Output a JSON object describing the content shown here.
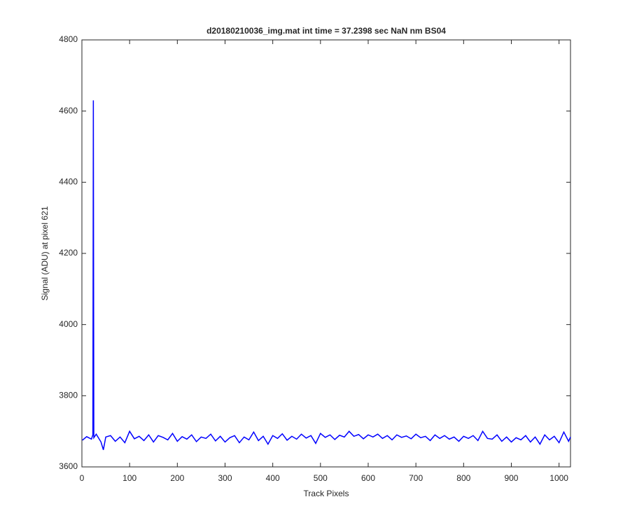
{
  "chart_data": {
    "type": "line",
    "title": "d20180210036_img.mat int time = 37.2398 sec  NaN nm BS04",
    "x_label": "Track Pixels",
    "y_label": "Signal (ADU) at pixel 621",
    "color": "#0000ff",
    "x": [
      1,
      10,
      20,
      23,
      24,
      25,
      30,
      40,
      45,
      50,
      60,
      70,
      80,
      90,
      100,
      110,
      120,
      130,
      140,
      150,
      160,
      170,
      180,
      190,
      200,
      210,
      220,
      230,
      240,
      250,
      260,
      270,
      280,
      290,
      300,
      310,
      320,
      330,
      340,
      350,
      360,
      370,
      380,
      390,
      400,
      410,
      420,
      430,
      440,
      450,
      460,
      470,
      480,
      490,
      500,
      510,
      520,
      530,
      540,
      550,
      560,
      570,
      580,
      590,
      600,
      610,
      620,
      630,
      640,
      650,
      660,
      670,
      680,
      690,
      700,
      710,
      720,
      730,
      740,
      750,
      760,
      770,
      780,
      790,
      800,
      810,
      820,
      830,
      840,
      850,
      860,
      870,
      880,
      890,
      900,
      910,
      920,
      930,
      940,
      950,
      960,
      970,
      980,
      990,
      1000,
      1010,
      1020,
      1024
    ],
    "values": [
      3675,
      3685,
      3678,
      3690,
      4630,
      3682,
      3692,
      3670,
      3648,
      3684,
      3688,
      3672,
      3684,
      3668,
      3700,
      3679,
      3686,
      3674,
      3690,
      3670,
      3688,
      3683,
      3676,
      3694,
      3672,
      3685,
      3678,
      3690,
      3671,
      3684,
      3680,
      3692,
      3673,
      3686,
      3670,
      3682,
      3688,
      3668,
      3684,
      3676,
      3698,
      3674,
      3686,
      3664,
      3688,
      3680,
      3693,
      3675,
      3686,
      3678,
      3692,
      3681,
      3688,
      3666,
      3694,
      3683,
      3690,
      3677,
      3689,
      3684,
      3700,
      3686,
      3691,
      3679,
      3690,
      3684,
      3692,
      3680,
      3688,
      3676,
      3690,
      3683,
      3687,
      3679,
      3692,
      3682,
      3686,
      3674,
      3690,
      3680,
      3688,
      3678,
      3684,
      3672,
      3686,
      3680,
      3688,
      3674,
      3700,
      3680,
      3678,
      3690,
      3672,
      3684,
      3670,
      3682,
      3676,
      3688,
      3670,
      3684,
      3664,
      3690,
      3676,
      3686,
      3668,
      3698,
      3672,
      3684
    ],
    "xlim": [
      0,
      1024
    ],
    "ylim": [
      3600,
      4800
    ],
    "xticks": [
      0,
      100,
      200,
      300,
      400,
      500,
      600,
      700,
      800,
      900,
      1000
    ],
    "yticks": [
      3600,
      3800,
      4000,
      4200,
      4400,
      4600,
      4800
    ],
    "grid": false
  }
}
